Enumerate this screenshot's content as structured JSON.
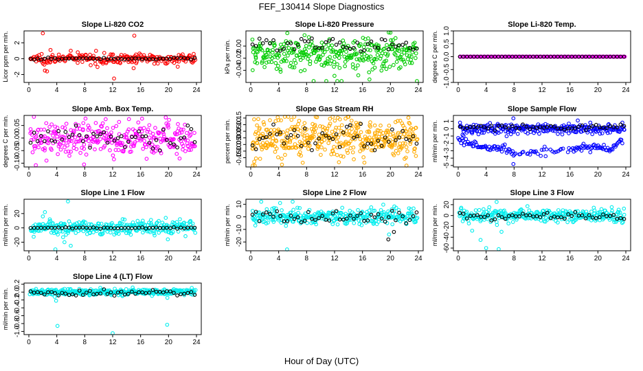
{
  "figure": {
    "title": "FEF_130414  Slope Diagnostics",
    "xlabel": "Hour of Day (UTC)"
  },
  "chart_data": [
    {
      "type": "scatter",
      "title": "Slope Li-820 CO2",
      "ylabel": "Licor ppm per min.",
      "color": "#ff0000",
      "x_ticks": [
        0,
        4,
        8,
        12,
        16,
        20,
        24
      ],
      "xlim": [
        0,
        24
      ],
      "ylim": [
        -3,
        3.5
      ],
      "y_ticks": [
        -2,
        0,
        2
      ],
      "y_tick_labels": [
        "-2",
        "0",
        "2"
      ],
      "noise": {
        "center": 0,
        "spread": 0.3,
        "count": 240
      },
      "outliers": [
        [
          2.0,
          3.2
        ],
        [
          2.3,
          -1.5
        ],
        [
          2.6,
          -1.6
        ],
        [
          3.1,
          1.1
        ],
        [
          6.0,
          1.0
        ],
        [
          7.0,
          0.8
        ],
        [
          12.2,
          -2.5
        ],
        [
          15.1,
          2.9
        ],
        [
          15.0,
          -1.2
        ],
        [
          23.6,
          0.6
        ]
      ],
      "means": {
        "center": 0,
        "spread": 0.06
      }
    },
    {
      "type": "scatter",
      "title": "Slope Li-820 Pressure",
      "ylabel": "kPa per min.",
      "color": "#00cc00",
      "x_ticks": [
        0,
        4,
        8,
        12,
        16,
        20,
        24
      ],
      "xlim": [
        0,
        24
      ],
      "ylim": [
        -0.06,
        0.025
      ],
      "y_ticks": [
        -0.04,
        -0.02,
        0
      ],
      "y_tick_labels": [
        "-0.04",
        "-0.02",
        "0.00"
      ],
      "noise": {
        "center": -0.012,
        "spread": 0.014,
        "count": 330
      },
      "outliers": [
        [
          9.0,
          -0.058
        ],
        [
          13.0,
          -0.058
        ],
        [
          17.0,
          -0.055
        ],
        [
          20.0,
          0.022
        ],
        [
          23.8,
          -0.058
        ],
        [
          7.7,
          0.018
        ]
      ],
      "means": {
        "center": 0,
        "spread": 0.006
      }
    },
    {
      "type": "scatter",
      "title": "Slope Li-820 Temp.",
      "ylabel": "degrees C per min.",
      "color": "#ff00ff",
      "x_ticks": [
        0,
        4,
        8,
        12,
        16,
        20,
        24
      ],
      "xlim": [
        0,
        24
      ],
      "ylim": [
        -1.0,
        1.0
      ],
      "y_ticks": [
        -1.0,
        -0.5,
        0,
        0.5,
        1.0
      ],
      "y_tick_labels": [
        "-1.0",
        "-0.5",
        "0.0",
        "0.5",
        "1.0"
      ],
      "noise": {
        "center": 0,
        "spread": 0.0,
        "count": 200
      },
      "outliers": [],
      "means": {
        "center": 0,
        "spread": 0.0
      }
    },
    {
      "type": "scatter",
      "title": "Slope Amb. Box Temp.",
      "ylabel": "degrees C per min.",
      "color": "#ff00ff",
      "x_ticks": [
        0,
        4,
        8,
        12,
        16,
        20,
        24
      ],
      "xlim": [
        0,
        24
      ],
      "ylim": [
        -0.115,
        0.09
      ],
      "y_ticks": [
        -0.1,
        -0.05,
        0,
        0.05
      ],
      "y_tick_labels": [
        "-0.10",
        "-0.05",
        "0.00",
        "0.05"
      ],
      "noise": {
        "center": 0,
        "spread": 0.035,
        "count": 320
      },
      "outliers": [
        [
          11.0,
          0.075
        ],
        [
          19.6,
          0.082
        ],
        [
          7.9,
          -0.105
        ],
        [
          1.0,
          -0.108
        ]
      ],
      "means": {
        "center": 0,
        "spread": 0.025
      }
    },
    {
      "type": "scatter",
      "title": "Slope Gas Stream RH",
      "ylabel": "percent per min.",
      "color": "#ffaa00",
      "x_ticks": [
        0,
        4,
        8,
        12,
        16,
        20,
        24
      ],
      "xlim": [
        0,
        24
      ],
      "ylim": [
        -0.22,
        0.17
      ],
      "y_ticks": [
        -0.15,
        -0.1,
        -0.05,
        0,
        0.05,
        0.1,
        0.15
      ],
      "y_tick_labels": [
        "-0.15",
        "-0.10",
        "-0.05",
        "0.00",
        "0.05",
        "0.10",
        "0.15"
      ],
      "noise": {
        "center": 0,
        "spread": 0.07,
        "count": 420
      },
      "outliers": [
        [
          0.3,
          -0.21
        ],
        [
          0.5,
          -0.18
        ],
        [
          14.0,
          0.16
        ],
        [
          22.3,
          -0.21
        ]
      ],
      "means": {
        "center": 0,
        "spread": 0.05
      }
    },
    {
      "type": "scatter",
      "title": "Slope Sample Flow",
      "ylabel": "ml/min per min.",
      "color": "#0000ff",
      "x_ticks": [
        0,
        4,
        8,
        12,
        16,
        20,
        24
      ],
      "xlim": [
        0,
        24
      ],
      "ylim": [
        -5.2,
        1.8
      ],
      "y_ticks": [
        -5,
        -4,
        -3,
        -2,
        -1,
        0,
        1
      ],
      "y_tick_labels": [
        "-5",
        "-4",
        "-3",
        "-2",
        "-1",
        "0",
        "1"
      ],
      "noise": {
        "center": 0,
        "spread": 0.35,
        "count": 260
      },
      "lower_band": [
        [
          0,
          -1.5
        ],
        [
          3,
          -2.4
        ],
        [
          6,
          -2.6
        ],
        [
          8,
          -3.5
        ],
        [
          12,
          -3.1
        ],
        [
          16,
          -2.9
        ],
        [
          20,
          -2.4
        ],
        [
          22,
          -3.0
        ],
        [
          23.5,
          -1.6
        ]
      ],
      "outliers": [
        [
          7.9,
          -4.8
        ],
        [
          7.9,
          1.4
        ]
      ],
      "means": {
        "center": 0.2,
        "spread": 0.2
      }
    },
    {
      "type": "scatter",
      "title": "Slope Line 1 Flow",
      "ylabel": "ml/min per min.",
      "color": "#00eeee",
      "x_ticks": [
        0,
        4,
        8,
        12,
        16,
        20,
        24
      ],
      "xlim": [
        0,
        24
      ],
      "ylim": [
        -32,
        40
      ],
      "y_ticks": [
        -20,
        0,
        20
      ],
      "y_tick_labels": [
        "-20",
        "0",
        "20"
      ],
      "noise": {
        "center": 0,
        "spread": 5,
        "count": 300
      },
      "outliers": [
        [
          2.0,
          16
        ],
        [
          2.3,
          22
        ],
        [
          3.0,
          12
        ],
        [
          3.8,
          -30
        ],
        [
          4.9,
          -13
        ],
        [
          5.1,
          -20
        ],
        [
          5.6,
          37
        ],
        [
          6.0,
          -25
        ],
        [
          19.6,
          14
        ],
        [
          19.9,
          -16
        ]
      ],
      "means": {
        "center": 0,
        "spread": 0.5
      }
    },
    {
      "type": "scatter",
      "title": "Slope Line 2 Flow",
      "ylabel": "ml/min per min.",
      "color": "#00eeee",
      "x_ticks": [
        0,
        4,
        8,
        12,
        16,
        20,
        24
      ],
      "xlim": [
        0,
        24
      ],
      "ylim": [
        -27,
        14
      ],
      "y_ticks": [
        -20,
        -10,
        0,
        10
      ],
      "y_tick_labels": [
        "-20",
        "-10",
        "0",
        "10"
      ],
      "noise": {
        "center": 0,
        "spread": 3.2,
        "count": 320
      },
      "outliers": [
        [
          1.5,
          12
        ],
        [
          4.2,
          11
        ],
        [
          5.2,
          -26
        ],
        [
          6.0,
          12
        ],
        [
          7.0,
          7
        ],
        [
          19.8,
          -14
        ],
        [
          20.2,
          6
        ]
      ],
      "means": {
        "center": 0,
        "spread": 2.5
      },
      "extra_means": [
        [
          19.7,
          -18
        ],
        [
          20.5,
          -12
        ]
      ]
    },
    {
      "type": "scatter",
      "title": "Slope Line 3 Flow",
      "ylabel": "ml/min per min.",
      "color": "#00eeee",
      "x_ticks": [
        0,
        4,
        8,
        12,
        16,
        20,
        24
      ],
      "xlim": [
        0,
        24
      ],
      "ylim": [
        -65,
        30
      ],
      "y_ticks": [
        -60,
        -40,
        -20,
        0,
        20
      ],
      "y_tick_labels": [
        "-60",
        "-40",
        "-20",
        "0",
        "20"
      ],
      "noise": {
        "center": 0,
        "spread": 6,
        "count": 320
      },
      "outliers": [
        [
          2.0,
          -28
        ],
        [
          3.2,
          -45
        ],
        [
          4.0,
          -60
        ],
        [
          5.5,
          25
        ],
        [
          5.8,
          -62
        ],
        [
          6.2,
          -30
        ]
      ],
      "means": {
        "center": 0,
        "spread": 4
      }
    },
    {
      "type": "scatter",
      "title": "Slope Line 4 (LT) Flow",
      "ylabel": "ml/min per min.",
      "color": "#00eeee",
      "x_ticks": [
        0,
        4,
        8,
        12,
        16,
        20,
        24
      ],
      "xlim": [
        0,
        24
      ],
      "ylim": [
        -1.08,
        0.23
      ],
      "y_ticks": [
        -1.0,
        -0.8,
        -0.6,
        -0.4,
        -0.2,
        0,
        0.2
      ],
      "y_tick_labels": [
        "-1.0",
        "-0.8",
        "-0.6",
        "-0.4",
        "-0.2",
        "0.0",
        "0.2"
      ],
      "noise": {
        "center": 0,
        "spread": 0.04,
        "count": 340
      },
      "outliers": [
        [
          3.7,
          -0.12
        ],
        [
          3.9,
          -0.22
        ],
        [
          4.1,
          -0.86
        ],
        [
          12.0,
          -1.05
        ],
        [
          19.8,
          -0.83
        ]
      ],
      "means": {
        "center": -0.02,
        "spread": 0.03
      }
    }
  ]
}
